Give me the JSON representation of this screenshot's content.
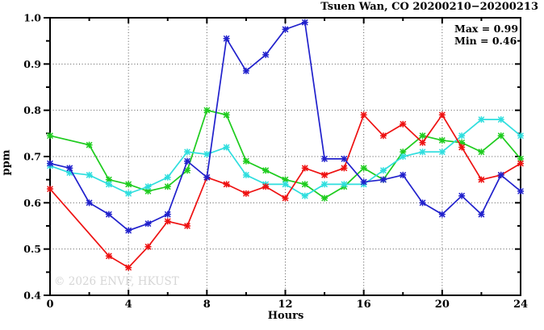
{
  "header": {
    "title": "Tsuen Wan, CO 20200210−20200213"
  },
  "annotation": {
    "max_label": "Max = 0.99",
    "min_label": "Min = 0.46"
  },
  "axes": {
    "ylabel": "ppm",
    "xlabel": "Hours"
  },
  "watermark": "© 2026 ENVF, HKUST",
  "colors": {
    "frame": "#000000",
    "grid": "#555555",
    "watermark": "#d6d6d6"
  },
  "chart_data": {
    "type": "line",
    "title": "Tsuen Wan, CO 20200210−20200213",
    "xlabel": "Hours",
    "ylabel": "ppm",
    "xlim": [
      0,
      24
    ],
    "ylim": [
      0.4,
      1.0
    ],
    "x": [
      0,
      1,
      2,
      3,
      4,
      5,
      6,
      7,
      8,
      9,
      10,
      11,
      12,
      13,
      14,
      15,
      16,
      17,
      18,
      19,
      20,
      21,
      22,
      23,
      24
    ],
    "x_major_ticks": [
      0,
      4,
      8,
      12,
      16,
      20,
      24
    ],
    "x_minor_ticks": [
      2,
      6,
      10,
      14,
      18,
      22
    ],
    "y_major_ticks": [
      0.4,
      0.5,
      0.6,
      0.7,
      0.8,
      0.9,
      1.0
    ],
    "y_minor_ticks": [
      0.45,
      0.55,
      0.65,
      0.75,
      0.85,
      0.95
    ],
    "grid": {
      "x_lines": [
        4,
        8,
        12,
        16,
        20
      ],
      "y_lines": [
        0.5,
        0.6,
        0.7,
        0.8,
        0.9
      ],
      "style": "dotted"
    },
    "legend": "none",
    "annotations": [
      "Max = 0.99",
      "Min = 0.46"
    ],
    "series": [
      {
        "name": "green",
        "color": "#1ecc1e",
        "values": [
          0.745,
          null,
          0.725,
          0.65,
          0.64,
          0.625,
          0.635,
          0.67,
          0.8,
          0.79,
          0.69,
          0.67,
          0.65,
          0.64,
          0.61,
          0.635,
          0.675,
          0.65,
          0.71,
          0.745,
          0.735,
          0.73,
          0.71,
          0.745,
          0.695
        ]
      },
      {
        "name": "cyan",
        "color": "#2fdede",
        "values": [
          0.68,
          0.665,
          0.66,
          0.64,
          0.62,
          0.635,
          0.655,
          0.71,
          0.705,
          0.72,
          0.66,
          0.64,
          0.64,
          0.615,
          0.64,
          0.64,
          0.64,
          0.67,
          0.7,
          0.71,
          0.71,
          0.745,
          0.78,
          0.78,
          0.745
        ]
      },
      {
        "name": "red",
        "color": "#ee1111",
        "values": [
          0.63,
          null,
          null,
          0.485,
          0.46,
          0.505,
          0.56,
          0.55,
          0.655,
          0.64,
          0.62,
          0.635,
          0.61,
          0.675,
          0.66,
          0.675,
          0.79,
          0.745,
          0.77,
          0.73,
          0.79,
          0.72,
          0.65,
          0.66,
          0.685
        ]
      },
      {
        "name": "blue",
        "color": "#2020cc",
        "values": [
          0.685,
          0.675,
          0.6,
          0.575,
          0.54,
          0.555,
          0.575,
          0.69,
          0.655,
          0.955,
          0.885,
          0.92,
          0.975,
          0.99,
          0.695,
          0.695,
          0.645,
          0.65,
          0.66,
          0.6,
          0.575,
          0.615,
          0.575,
          0.66,
          0.625
        ]
      }
    ]
  }
}
